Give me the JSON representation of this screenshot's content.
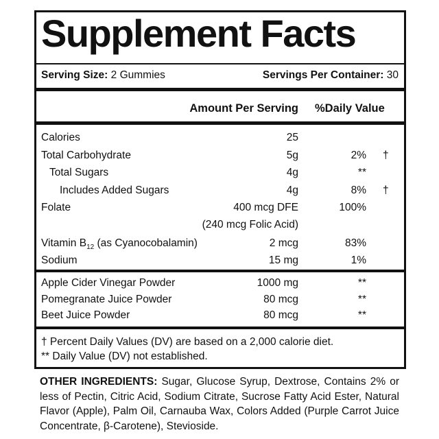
{
  "title": "Supplement Facts",
  "serving": {
    "size_label": "Serving Size:",
    "size": "2 Gummies",
    "per_container_label": "Servings Per Container:",
    "per_container": 30
  },
  "header": {
    "amount": "Amount Per Serving",
    "dv": "%Daily Value"
  },
  "sections": [
    {
      "rows": [
        {
          "name": "Calories",
          "amount": "25"
        },
        {
          "name": "Total Carbohydrate",
          "amount": "5g",
          "dv": "2%",
          "symbol": "†"
        },
        {
          "name": "Total Sugars",
          "amount": "4g",
          "dv": "**"
        },
        {
          "name": "Includes Added Sugars",
          "amount": "4g",
          "dv": "8%",
          "symbol": "†"
        },
        {
          "name": "Folate",
          "amount": "400 mcg DFE",
          "dv": "100%"
        },
        {
          "amount": "(240 mcg Folic Acid)"
        },
        {
          "name": "Vitamin B",
          "subscript": "12",
          "name_suffix": " (as Cyanocobalamin)",
          "amount": "2 mcg",
          "dv": "83%"
        },
        {
          "name": "Sodium",
          "amount": "15 mg",
          "dv": "1%"
        }
      ]
    },
    {
      "rows": [
        {
          "name": "Apple Cider Vinegar Powder",
          "amount": "1000 mg",
          "dv": "**"
        },
        {
          "name": "Pomegranate Juice Powder",
          "amount": "80 mcg",
          "dv": "**"
        },
        {
          "name": "Beet Juice Powder",
          "amount": "80 mcg",
          "dv": "**"
        }
      ]
    }
  ],
  "footnotes": [
    "† Percent Daily Values (DV) are based on a 2,000 calorie diet.",
    "** Daily Value (DV) not established."
  ],
  "other_ingredients": {
    "label": "OTHER INGREDIENTS:",
    "text": " Sugar, Glucose Syrup, Dextrose, Contains 2% or less of Pectin, Citric Acid, Sodium Citrate, Sucrose Fatty Acid Ester, Natural Flavor (Apple), Palm Oil, Carnauba Wax, Colors Added (Purple Carrot Juice Concentrate, β-Carotene), Stevioside."
  }
}
